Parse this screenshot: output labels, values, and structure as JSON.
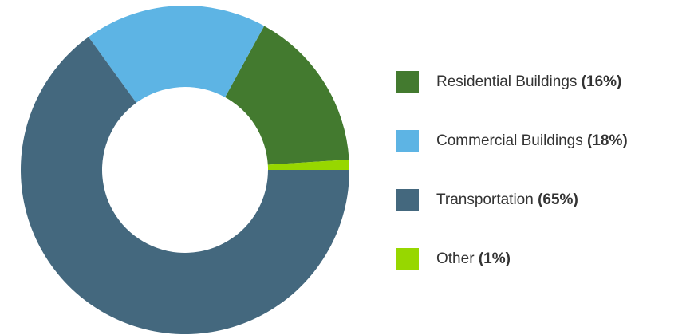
{
  "chart_data": {
    "type": "donut",
    "categories": [
      "Residential Buildings",
      "Commercial Buildings",
      "Transportation",
      "Other"
    ],
    "values": [
      16,
      18,
      65,
      1
    ],
    "value_labels": [
      "(16%)",
      "(18%)",
      "(65%)",
      "(1%)"
    ],
    "colors": [
      "#437a2f",
      "#5db4e4",
      "#44687e",
      "#97d700"
    ],
    "legend": "right"
  }
}
